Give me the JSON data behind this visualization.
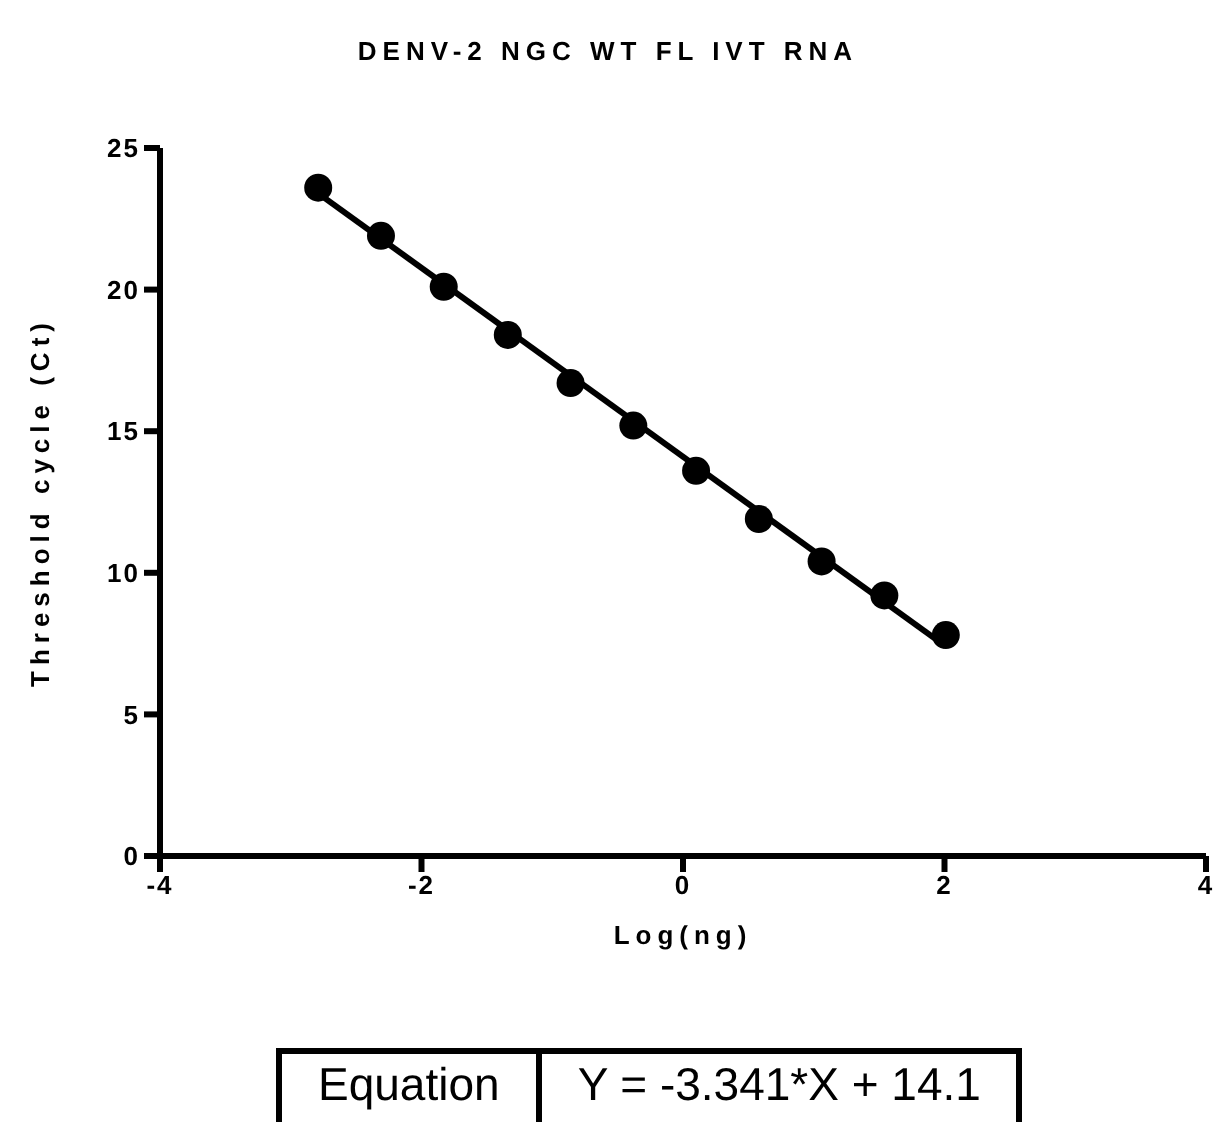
{
  "chart_data": {
    "type": "scatter",
    "title": "DENV-2 NGC WT FL IVT RNA",
    "xlabel": "Log(ng)",
    "ylabel": "Threshold cycle (Ct)",
    "xlim": [
      -4,
      4
    ],
    "xticks": [
      -4,
      -2,
      0,
      2,
      4
    ],
    "ylim": [
      0,
      25
    ],
    "yticks": [
      0,
      5,
      10,
      15,
      20,
      25
    ],
    "grid": false,
    "legend": false,
    "series": [
      {
        "type": "scatter",
        "color": "#000000",
        "marker": "circle",
        "x": [
          -2.79,
          -2.31,
          -1.83,
          -1.34,
          -0.86,
          -0.38,
          0.1,
          0.58,
          1.06,
          1.54,
          2.01
        ],
        "values": [
          23.6,
          21.9,
          20.1,
          18.4,
          16.7,
          15.2,
          13.6,
          11.9,
          10.4,
          9.2,
          7.8
        ]
      },
      {
        "type": "line",
        "color": "#000000",
        "x": [
          -2.79,
          2.01
        ],
        "values": [
          23.4,
          7.4
        ]
      }
    ],
    "annotations": [
      "Equation",
      "Y = -3.341*X + 14.1"
    ]
  }
}
